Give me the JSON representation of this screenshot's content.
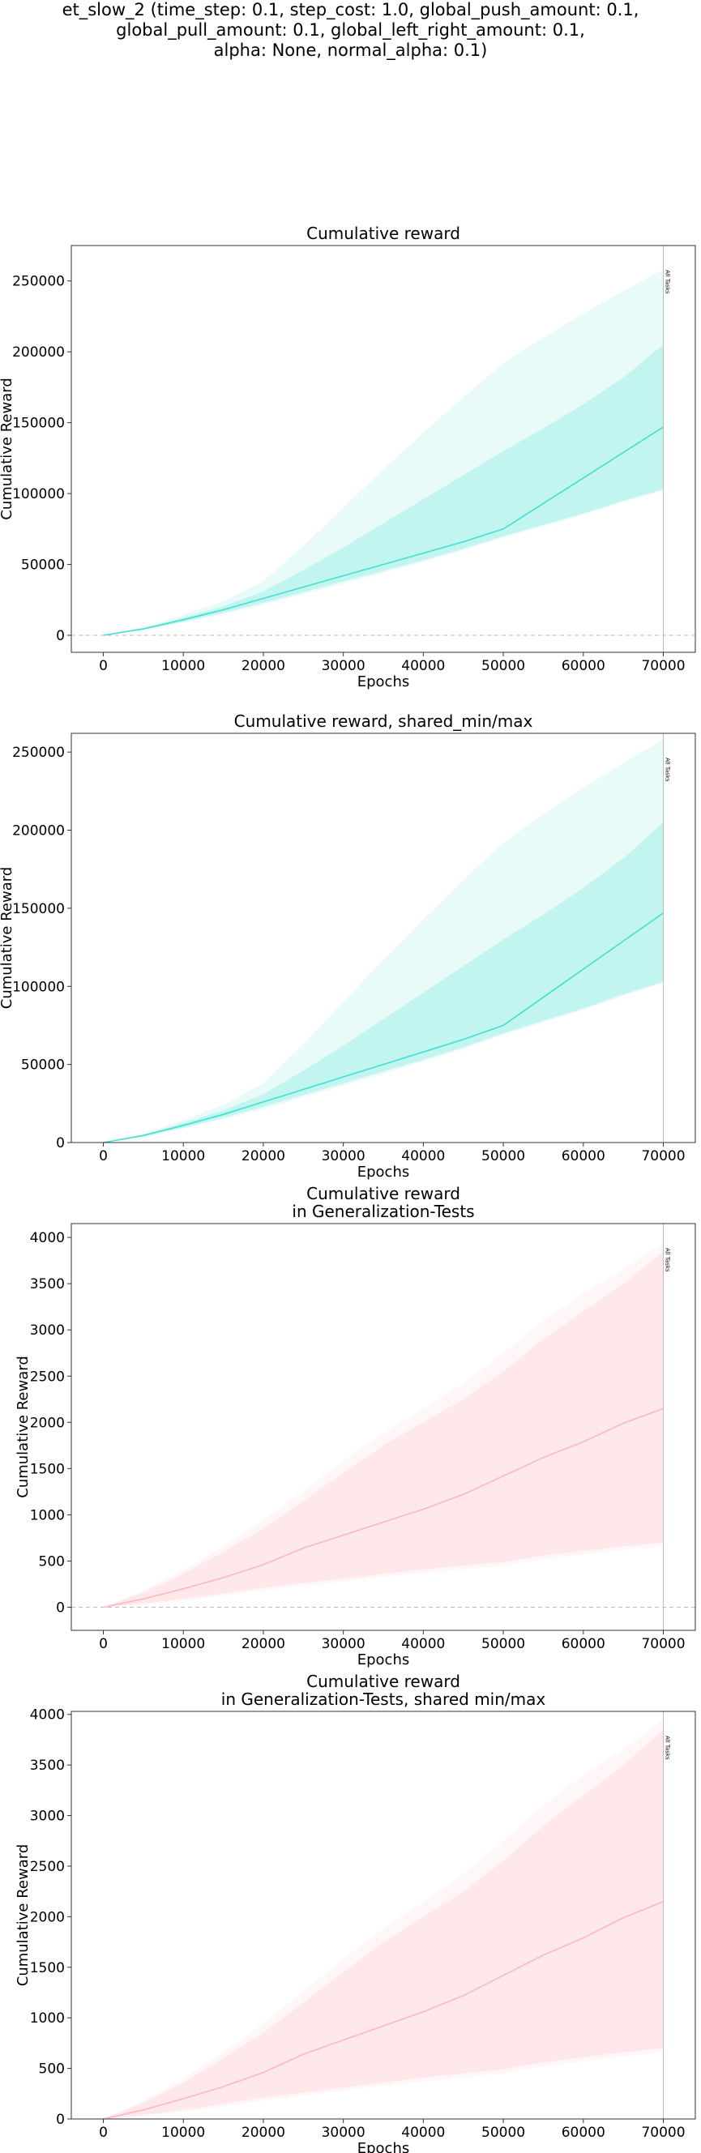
{
  "figure": {
    "suptitle_lines": [
      "et_slow_2 (time_step: 0.1, step_cost: 1.0, global_push_amount: 0.1,",
      "global_pull_amount: 0.1, global_left_right_amount: 0.1,",
      "alpha: None, normal_alpha: 0.1)"
    ]
  },
  "colors": {
    "train": "#40e0d0",
    "test": "#ffb6c1",
    "frame": "#333333",
    "vline": "#bbbbbb"
  },
  "chart_data": [
    {
      "type": "line",
      "title": [
        "Cumulative reward"
      ],
      "xlabel": "Epochs",
      "ylabel": "Cumulative Reward",
      "xlim": [
        -4000,
        74000
      ],
      "ylim": [
        -12000,
        275000
      ],
      "xticks": [
        0,
        10000,
        20000,
        30000,
        40000,
        50000,
        60000,
        70000
      ],
      "yticks": [
        0,
        50000,
        100000,
        150000,
        200000,
        250000
      ],
      "zero_line": true,
      "vline": {
        "x": 70000,
        "label": "All Tasks"
      },
      "series": [
        {
          "color": "#40e0d0",
          "x": [
            0,
            5000,
            10000,
            15000,
            20000,
            25000,
            30000,
            35000,
            40000,
            45000,
            50000,
            55000,
            60000,
            65000,
            70000
          ],
          "mean": [
            0,
            4500,
            11000,
            18000,
            26000,
            34000,
            42000,
            50000,
            58000,
            66000,
            75000,
            93000,
            111000,
            129000,
            147000
          ],
          "q_low": [
            0,
            4000,
            9500,
            16000,
            23000,
            30500,
            38000,
            45500,
            53000,
            61000,
            70000,
            78000,
            86000,
            95000,
            103000
          ],
          "q_high": [
            0,
            5000,
            12500,
            20500,
            31000,
            46000,
            62000,
            79000,
            96000,
            113000,
            130000,
            146000,
            163000,
            182000,
            205000
          ],
          "min": [
            0,
            3500,
            9000,
            15000,
            21500,
            29000,
            36500,
            44000,
            52000,
            60000,
            69000,
            77000,
            85000,
            94000,
            102000
          ],
          "max": [
            0,
            5500,
            14500,
            24000,
            38000,
            63000,
            90000,
            117000,
            143000,
            168000,
            192000,
            210000,
            227000,
            243000,
            258000
          ]
        }
      ]
    },
    {
      "type": "line",
      "title": [
        "Cumulative reward, shared_min/max"
      ],
      "xlabel": "Epochs",
      "ylabel": "Cumulative Reward",
      "xlim": [
        -4000,
        74000
      ],
      "ylim": [
        0,
        262000
      ],
      "xticks": [
        0,
        10000,
        20000,
        30000,
        40000,
        50000,
        60000,
        70000
      ],
      "yticks": [
        0,
        50000,
        100000,
        150000,
        200000,
        250000
      ],
      "zero_line": false,
      "vline": {
        "x": 70000,
        "label": "All Tasks"
      },
      "series": [
        {
          "color": "#40e0d0",
          "x": [
            0,
            5000,
            10000,
            15000,
            20000,
            25000,
            30000,
            35000,
            40000,
            45000,
            50000,
            55000,
            60000,
            65000,
            70000
          ],
          "mean": [
            0,
            4500,
            11000,
            18000,
            26000,
            34000,
            42000,
            50000,
            58000,
            66000,
            75000,
            93000,
            111000,
            129000,
            147000
          ],
          "q_low": [
            0,
            4000,
            9500,
            16000,
            23000,
            30500,
            38000,
            45500,
            53000,
            61000,
            70000,
            78000,
            86000,
            95000,
            103000
          ],
          "q_high": [
            0,
            5000,
            12500,
            20500,
            31000,
            46000,
            62000,
            79000,
            96000,
            113000,
            130000,
            146000,
            163000,
            182000,
            205000
          ],
          "min": [
            0,
            3500,
            9000,
            15000,
            21500,
            29000,
            36500,
            44000,
            52000,
            60000,
            69000,
            77000,
            85000,
            94000,
            102000
          ],
          "max": [
            0,
            5500,
            14500,
            24000,
            38000,
            63000,
            90000,
            117000,
            143000,
            168000,
            192000,
            210000,
            227000,
            243000,
            258000
          ]
        }
      ]
    },
    {
      "type": "line",
      "title": [
        "Cumulative reward",
        "in Generalization-Tests"
      ],
      "xlabel": "Epochs",
      "ylabel": "Cumulative Reward",
      "xlim": [
        -4000,
        74000
      ],
      "ylim": [
        -250,
        4150
      ],
      "xticks": [
        0,
        10000,
        20000,
        30000,
        40000,
        50000,
        60000,
        70000
      ],
      "yticks": [
        0,
        500,
        1000,
        1500,
        2000,
        2500,
        3000,
        3500,
        4000
      ],
      "zero_line": true,
      "vline": {
        "x": 70000,
        "label": "All Tasks"
      },
      "series": [
        {
          "color": "#ffb6c1",
          "x": [
            0,
            5000,
            10000,
            15000,
            20000,
            25000,
            30000,
            35000,
            40000,
            45000,
            50000,
            55000,
            60000,
            65000,
            70000
          ],
          "mean": [
            0,
            90,
            200,
            320,
            460,
            640,
            780,
            920,
            1060,
            1220,
            1420,
            1620,
            1790,
            1990,
            2150
          ],
          "q_low": [
            0,
            40,
            90,
            150,
            210,
            260,
            310,
            360,
            410,
            450,
            490,
            560,
            610,
            660,
            700
          ],
          "q_high": [
            0,
            160,
            360,
            600,
            850,
            1150,
            1450,
            1750,
            2000,
            2250,
            2550,
            2900,
            3200,
            3500,
            3850
          ],
          "min": [
            0,
            30,
            70,
            120,
            180,
            230,
            280,
            330,
            370,
            410,
            450,
            520,
            570,
            620,
            660
          ],
          "max": [
            0,
            180,
            400,
            660,
            940,
            1260,
            1580,
            1880,
            2150,
            2420,
            2750,
            3100,
            3400,
            3650,
            3950
          ]
        }
      ]
    },
    {
      "type": "line",
      "title": [
        "Cumulative reward",
        "in Generalization-Tests, shared min/max"
      ],
      "xlabel": "Epochs",
      "ylabel": "Cumulative Reward",
      "xlim": [
        -4000,
        74000
      ],
      "ylim": [
        0,
        4030
      ],
      "xticks": [
        0,
        10000,
        20000,
        30000,
        40000,
        50000,
        60000,
        70000
      ],
      "yticks": [
        0,
        500,
        1000,
        1500,
        2000,
        2500,
        3000,
        3500,
        4000
      ],
      "zero_line": false,
      "vline": {
        "x": 70000,
        "label": "All Tasks"
      },
      "series": [
        {
          "color": "#ffb6c1",
          "x": [
            0,
            5000,
            10000,
            15000,
            20000,
            25000,
            30000,
            35000,
            40000,
            45000,
            50000,
            55000,
            60000,
            65000,
            70000
          ],
          "mean": [
            0,
            90,
            200,
            320,
            460,
            640,
            780,
            920,
            1060,
            1220,
            1420,
            1620,
            1790,
            1990,
            2150
          ],
          "q_low": [
            0,
            40,
            90,
            150,
            210,
            260,
            310,
            360,
            410,
            450,
            490,
            560,
            610,
            660,
            700
          ],
          "q_high": [
            0,
            160,
            360,
            600,
            850,
            1150,
            1450,
            1750,
            2000,
            2250,
            2550,
            2900,
            3200,
            3500,
            3850
          ],
          "min": [
            0,
            30,
            70,
            120,
            180,
            230,
            280,
            330,
            370,
            410,
            450,
            520,
            570,
            620,
            660
          ],
          "max": [
            0,
            180,
            400,
            660,
            940,
            1260,
            1580,
            1880,
            2150,
            2420,
            2750,
            3100,
            3400,
            3650,
            3950
          ]
        }
      ]
    }
  ]
}
